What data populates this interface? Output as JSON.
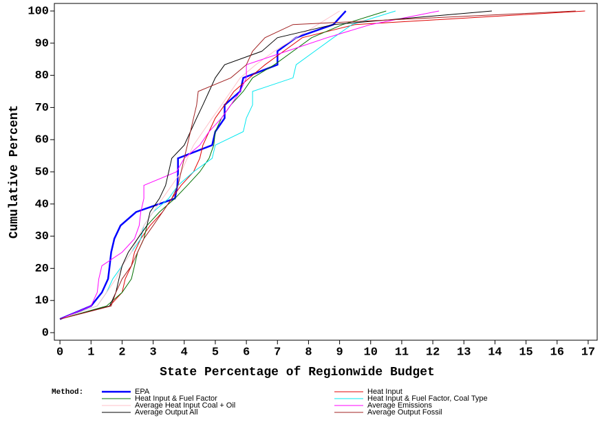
{
  "chart_data": {
    "type": "line",
    "xlabel": "State Percentage of Regionwide Budget",
    "ylabel": "Cumulative Percent",
    "legend_title": "Method:",
    "legend_position": "bottom",
    "xlim": [
      -0.18,
      17.29
    ],
    "ylim": [
      -2.35,
      102.35
    ],
    "xticks": [
      0,
      1,
      2,
      3,
      4,
      5,
      6,
      7,
      8,
      9,
      10,
      11,
      12,
      13,
      14,
      15,
      16,
      17
    ],
    "yticks": [
      0,
      10,
      20,
      30,
      40,
      50,
      60,
      70,
      80,
      90,
      100
    ],
    "series": [
      {
        "name": "EPA",
        "color": "#0000ff",
        "line_width": 2.5,
        "x": [
          0,
          1.0,
          1.35,
          1.55,
          1.6,
          1.65,
          1.75,
          1.95,
          2.45,
          3.7,
          3.78,
          3.8,
          3.8,
          4.9,
          5.0,
          5.3,
          5.3,
          5.8,
          5.9,
          7.0,
          7.0,
          7.6,
          8.8,
          9.2
        ],
        "values": [
          4.2,
          8.3,
          12.5,
          16.7,
          20.8,
          25,
          29.2,
          33.3,
          37.5,
          41.7,
          45.8,
          50,
          54.2,
          58.3,
          62.5,
          66.7,
          70.8,
          75,
          79.2,
          83.3,
          87.5,
          91.7,
          95.8,
          100
        ]
      },
      {
        "name": "Heat Input",
        "color": "#e00000",
        "line_width": 1,
        "x": [
          0,
          1.6,
          2.0,
          2.1,
          2.3,
          2.4,
          2.6,
          2.9,
          3.3,
          3.6,
          3.9,
          4.3,
          4.5,
          4.6,
          4.8,
          5.0,
          5.3,
          5.6,
          6.1,
          6.6,
          7.2,
          7.8,
          9.5,
          16.9
        ],
        "values": [
          4.2,
          8.3,
          12.5,
          16.7,
          20.8,
          25,
          29.2,
          33.3,
          37.5,
          41.7,
          45.8,
          50,
          54.2,
          58.3,
          62.5,
          66.7,
          70.8,
          75,
          79.2,
          83.3,
          87.5,
          91.7,
          95.8,
          100
        ]
      },
      {
        "name": "Heat Input & Fuel Factor",
        "color": "#007000",
        "line_width": 1,
        "x": [
          0,
          1.5,
          2.0,
          2.3,
          2.4,
          2.5,
          2.7,
          2.8,
          3.2,
          3.7,
          4.1,
          4.5,
          4.8,
          4.95,
          5.0,
          5.2,
          5.5,
          5.9,
          6.2,
          6.9,
          7.5,
          8.1,
          9.1,
          10.5
        ],
        "values": [
          4.2,
          8.3,
          12.5,
          16.7,
          20.8,
          25,
          29.2,
          33.3,
          37.5,
          41.7,
          45.8,
          50,
          54.2,
          58.3,
          62.5,
          66.7,
          70.8,
          75,
          79.2,
          83.3,
          87.5,
          91.7,
          95.8,
          100
        ]
      },
      {
        "name": "Heat Input & Fuel Factor, Coal Type",
        "color": "#00e8f0",
        "line_width": 1,
        "x": [
          0,
          1.2,
          1.5,
          1.7,
          2.0,
          2.3,
          2.6,
          2.7,
          3.0,
          3.5,
          3.8,
          4.3,
          4.9,
          5.0,
          5.9,
          6.0,
          6.2,
          6.2,
          7.5,
          7.6,
          8.2,
          8.8,
          9.4,
          10.8
        ],
        "values": [
          4.2,
          8.3,
          12.5,
          16.7,
          20.8,
          25,
          29.2,
          33.3,
          37.5,
          41.7,
          45.8,
          50,
          54.2,
          58.3,
          62.5,
          66.7,
          70.8,
          75,
          79.2,
          83.3,
          87.5,
          91.7,
          95.8,
          100
        ]
      },
      {
        "name": "Average Heat Input Coal + Oil",
        "color": "#ffc0c8",
        "line_width": 1,
        "x": [
          0,
          1.2,
          1.5,
          1.8,
          2.0,
          2.3,
          2.5,
          2.7,
          3.0,
          3.3,
          3.6,
          3.9,
          4.1,
          4.3,
          4.6,
          4.9,
          5.2,
          5.5,
          5.8,
          6.3,
          6.9,
          7.6,
          8.3,
          9.0
        ],
        "values": [
          4.2,
          8.3,
          12.5,
          16.7,
          20.8,
          25,
          29.2,
          33.3,
          37.5,
          41.7,
          45.8,
          50,
          54.2,
          58.3,
          62.5,
          66.7,
          70.8,
          75,
          79.2,
          83.3,
          87.5,
          91.7,
          95.8,
          100
        ]
      },
      {
        "name": "Average Emissions",
        "color": "#ff00ff",
        "line_width": 1,
        "x": [
          0,
          1.0,
          1.2,
          1.25,
          1.35,
          2.0,
          2.4,
          2.55,
          2.6,
          2.7,
          2.7,
          3.75,
          4.0,
          4.5,
          4.8,
          5.2,
          5.5,
          5.8,
          6.0,
          6.0,
          7.3,
          8.6,
          10.0,
          12.2
        ],
        "values": [
          4.2,
          8.3,
          12.5,
          16.7,
          20.8,
          25,
          29.2,
          33.3,
          37.5,
          41.7,
          45.8,
          50,
          54.2,
          58.3,
          62.5,
          66.7,
          70.8,
          75,
          79.2,
          83.3,
          87.5,
          91.7,
          95.8,
          100
        ]
      },
      {
        "name": "Average Output All",
        "color": "#000000",
        "line_width": 1,
        "x": [
          0,
          1.6,
          1.8,
          1.9,
          2.0,
          2.2,
          2.5,
          2.8,
          2.9,
          3.2,
          3.4,
          3.5,
          3.6,
          4.0,
          4.2,
          4.4,
          4.6,
          4.8,
          5.0,
          5.3,
          6.5,
          7.0,
          8.8,
          13.9
        ],
        "values": [
          4.2,
          8.3,
          12.5,
          16.7,
          20.8,
          25,
          29.2,
          33.3,
          37.5,
          41.7,
          45.8,
          50,
          54.2,
          58.3,
          62.5,
          66.7,
          70.8,
          75,
          79.2,
          83.3,
          87.5,
          91.7,
          95.8,
          100
        ]
      },
      {
        "name": "Average Output Fossil",
        "color": "#a02020",
        "line_width": 1,
        "x": [
          0,
          1.65,
          1.8,
          2.0,
          2.3,
          2.5,
          2.7,
          3.0,
          3.3,
          3.6,
          3.8,
          3.9,
          4.0,
          4.1,
          4.2,
          4.3,
          4.4,
          4.45,
          5.5,
          6.0,
          6.2,
          6.6,
          7.5,
          16.6
        ],
        "values": [
          4.2,
          8.3,
          12.5,
          16.7,
          20.8,
          25,
          29.2,
          33.3,
          37.5,
          41.7,
          45.8,
          50,
          54.2,
          58.3,
          62.5,
          66.7,
          70.8,
          75,
          79.2,
          83.3,
          87.5,
          91.7,
          95.8,
          100
        ]
      }
    ]
  }
}
